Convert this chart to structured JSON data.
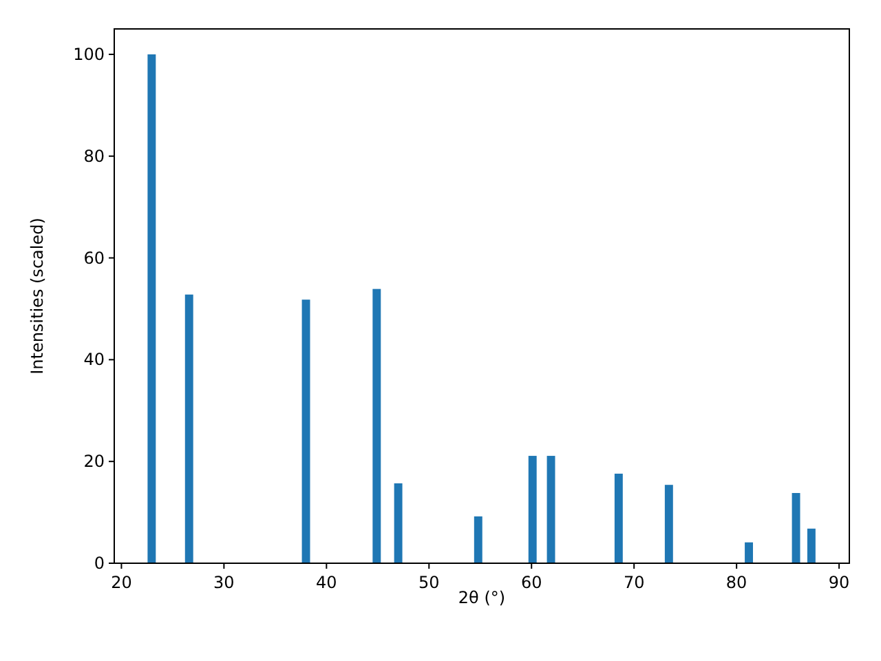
{
  "chart_data": {
    "type": "bar",
    "xlabel": "2θ (°)",
    "ylabel": "Intensities (scaled)",
    "x": [
      22.95,
      26.6,
      38.0,
      44.9,
      47.0,
      54.8,
      60.1,
      61.9,
      68.5,
      73.4,
      81.2,
      85.8,
      87.3
    ],
    "values": [
      100,
      52.8,
      51.8,
      53.9,
      15.7,
      9.2,
      21.1,
      21.1,
      17.6,
      15.4,
      4.1,
      13.8,
      6.8
    ],
    "color": "#1f77b4",
    "xlim": [
      19.3,
      91
    ],
    "ylim": [
      0,
      105
    ],
    "xticks": [
      20,
      30,
      40,
      50,
      60,
      70,
      80,
      90
    ],
    "yticks": [
      0,
      20,
      40,
      60,
      80,
      100
    ]
  }
}
